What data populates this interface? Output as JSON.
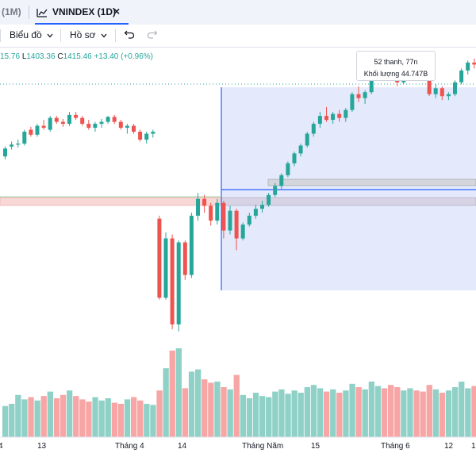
{
  "tabs": {
    "previous_label": "(1M)",
    "active_label": "VNINDEX (1D)",
    "close_glyph": "×",
    "active_icon": "chart-icon"
  },
  "toolbar": {
    "chart_type_label": "Biểu đồ",
    "profile_label": "Hồ sơ",
    "undo_icon": "undo-icon",
    "redo_icon": "redo-icon"
  },
  "legend": {
    "open_fragment": "15.76",
    "low_label": "L",
    "low_value": "1403.36",
    "close_label": "C",
    "close_value": "1415.46",
    "change": "+13.40 (+0.96%)"
  },
  "range_tooltip": {
    "bars_line": "52 thanh, 77n",
    "volume_line": "Khối lượng 44.747B"
  },
  "x_axis": {
    "labels": [
      "4",
      "13",
      "Tháng 4",
      "14",
      "Tháng Năm",
      "15",
      "Tháng 6",
      "12",
      "1"
    ]
  },
  "colors": {
    "up": "#26a69a",
    "down": "#ef5350",
    "up_volume": "#8fd1c7",
    "down_volume": "#f7a5a5",
    "selection_fill": "#dfe6fc",
    "selection_line": "#2962ff",
    "support_zone": "#f8d7d5",
    "accent": "#2962ff"
  },
  "chart_data": {
    "type": "candlestick",
    "note_ohlc": [
      [
        1235,
        1245,
        1232,
        1243,
        0.28
      ],
      [
        1245,
        1250,
        1242,
        1247,
        0.3
      ],
      [
        1247,
        1252,
        1244,
        1248,
        0.38
      ],
      [
        1248,
        1262,
        1246,
        1260,
        0.34
      ],
      [
        1262,
        1265,
        1255,
        1257,
        0.36
      ],
      [
        1257,
        1268,
        1255,
        1266,
        0.33
      ],
      [
        1266,
        1272,
        1262,
        1264,
        0.37
      ],
      [
        1262,
        1276,
        1260,
        1274,
        0.41
      ],
      [
        1274,
        1276,
        1268,
        1270,
        0.35
      ],
      [
        1270,
        1273,
        1265,
        1268,
        0.38
      ],
      [
        1268,
        1280,
        1266,
        1277,
        0.42
      ],
      [
        1277,
        1280,
        1272,
        1274,
        0.37
      ],
      [
        1274,
        1276,
        1266,
        1268,
        0.34
      ],
      [
        1268,
        1272,
        1262,
        1264,
        0.32
      ],
      [
        1264,
        1270,
        1260,
        1268,
        0.36
      ],
      [
        1268,
        1273,
        1264,
        1270,
        0.33
      ],
      [
        1270,
        1276,
        1268,
        1275,
        0.35
      ],
      [
        1275,
        1277,
        1268,
        1270,
        0.31
      ],
      [
        1270,
        1272,
        1262,
        1264,
        0.3
      ],
      [
        1264,
        1268,
        1258,
        1266,
        0.34
      ],
      [
        1266,
        1268,
        1258,
        1260,
        0.36
      ],
      [
        1260,
        1262,
        1250,
        1252,
        0.33
      ],
      [
        1252,
        1260,
        1248,
        1258,
        0.3
      ],
      [
        1258,
        1262,
        1254,
        1260,
        0.29
      ],
      [
        1172,
        1175,
        1090,
        1092,
        0.42
      ],
      [
        1092,
        1158,
        1090,
        1152,
        0.62
      ],
      [
        1152,
        1156,
        1060,
        1065,
        0.78
      ],
      [
        1065,
        1150,
        1058,
        1148,
        0.8
      ],
      [
        1148,
        1150,
        1110,
        1115,
        0.44
      ],
      [
        1115,
        1178,
        1112,
        1175,
        0.59
      ],
      [
        1175,
        1198,
        1170,
        1192,
        0.61
      ],
      [
        1192,
        1196,
        1178,
        1185,
        0.52
      ],
      [
        1185,
        1188,
        1165,
        1170,
        0.49
      ],
      [
        1170,
        1192,
        1166,
        1188,
        0.5
      ],
      [
        1188,
        1190,
        1152,
        1160,
        0.45
      ],
      [
        1160,
        1185,
        1156,
        1180,
        0.43
      ],
      [
        1180,
        1182,
        1140,
        1152,
        0.56
      ],
      [
        1152,
        1168,
        1150,
        1166,
        0.38
      ],
      [
        1166,
        1178,
        1164,
        1175,
        0.35
      ],
      [
        1175,
        1186,
        1172,
        1182,
        0.4
      ],
      [
        1182,
        1190,
        1178,
        1186,
        0.37
      ],
      [
        1186,
        1198,
        1184,
        1196,
        0.36
      ],
      [
        1196,
        1208,
        1194,
        1205,
        0.41
      ],
      [
        1205,
        1218,
        1202,
        1216,
        0.43
      ],
      [
        1216,
        1230,
        1214,
        1228,
        0.39
      ],
      [
        1228,
        1240,
        1225,
        1238,
        0.42
      ],
      [
        1238,
        1248,
        1235,
        1246,
        0.4
      ],
      [
        1246,
        1260,
        1244,
        1258,
        0.45
      ],
      [
        1258,
        1270,
        1255,
        1268,
        0.47
      ],
      [
        1268,
        1280,
        1264,
        1276,
        0.44
      ],
      [
        1276,
        1285,
        1270,
        1272,
        0.41
      ],
      [
        1272,
        1280,
        1268,
        1278,
        0.43
      ],
      [
        1278,
        1282,
        1270,
        1274,
        0.4
      ],
      [
        1274,
        1284,
        1270,
        1282,
        0.42
      ],
      [
        1282,
        1300,
        1280,
        1298,
        0.48
      ],
      [
        1298,
        1306,
        1290,
        1294,
        0.45
      ],
      [
        1294,
        1302,
        1288,
        1300,
        0.43
      ],
      [
        1300,
        1318,
        1298,
        1316,
        0.5
      ],
      [
        1316,
        1322,
        1312,
        1320,
        0.46
      ],
      [
        1320,
        1324,
        1314,
        1318,
        0.44
      ],
      [
        1318,
        1325,
        1312,
        1316,
        0.47
      ],
      [
        1316,
        1320,
        1306,
        1310,
        0.45
      ],
      [
        1310,
        1322,
        1308,
        1320,
        0.42
      ],
      [
        1320,
        1328,
        1318,
        1326,
        0.44
      ],
      [
        1326,
        1330,
        1320,
        1324,
        0.42
      ],
      [
        1324,
        1328,
        1316,
        1318,
        0.41
      ],
      [
        1318,
        1320,
        1296,
        1298,
        0.47
      ],
      [
        1298,
        1308,
        1294,
        1304,
        0.43
      ],
      [
        1304,
        1306,
        1292,
        1296,
        0.4
      ],
      [
        1296,
        1300,
        1292,
        1298,
        0.42
      ],
      [
        1298,
        1312,
        1296,
        1310,
        0.45
      ],
      [
        1310,
        1324,
        1308,
        1322,
        0.5
      ],
      [
        1322,
        1332,
        1318,
        1330,
        0.44
      ],
      [
        1330,
        1334,
        1324,
        1328,
        0.46
      ]
    ]
  }
}
